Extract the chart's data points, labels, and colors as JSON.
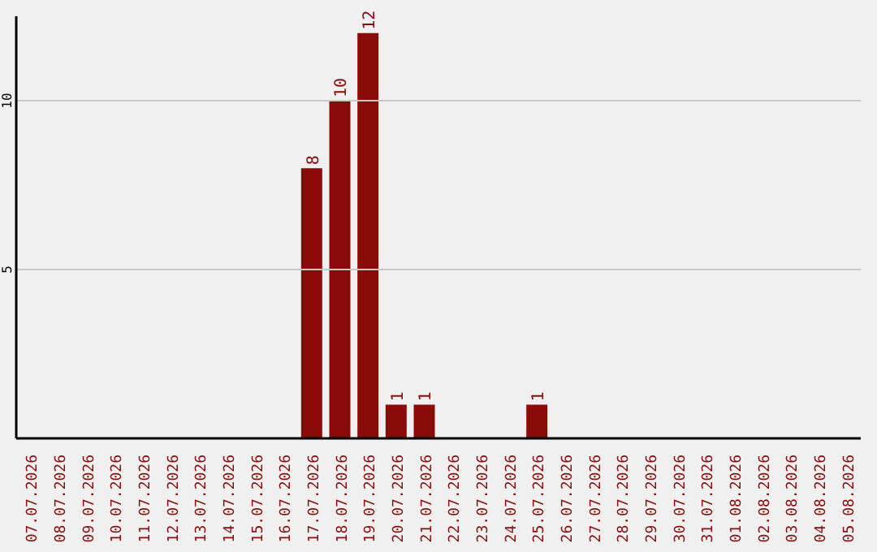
{
  "chart_data": {
    "type": "bar",
    "categories": [
      "07.07.2026",
      "08.07.2026",
      "09.07.2026",
      "10.07.2026",
      "11.07.2026",
      "12.07.2026",
      "13.07.2026",
      "14.07.2026",
      "15.07.2026",
      "16.07.2026",
      "17.07.2026",
      "18.07.2026",
      "19.07.2026",
      "20.07.2026",
      "21.07.2026",
      "22.07.2026",
      "23.07.2026",
      "24.07.2026",
      "25.07.2026",
      "26.07.2026",
      "27.07.2026",
      "28.07.2026",
      "29.07.2026",
      "30.07.2026",
      "31.07.2026",
      "01.08.2026",
      "02.08.2026",
      "03.08.2026",
      "04.08.2026",
      "05.08.2026"
    ],
    "values": [
      0,
      0,
      0,
      0,
      0,
      0,
      0,
      0,
      0,
      0,
      8,
      10,
      12,
      1,
      1,
      0,
      0,
      0,
      1,
      0,
      0,
      0,
      0,
      0,
      0,
      0,
      0,
      0,
      0,
      0
    ],
    "value_labels": [
      null,
      null,
      null,
      null,
      null,
      null,
      null,
      null,
      null,
      null,
      "8",
      "10",
      "12",
      "1",
      "1",
      null,
      null,
      null,
      "1",
      null,
      null,
      null,
      null,
      null,
      null,
      null,
      null,
      null,
      null,
      null
    ],
    "color": "#8b0b0b",
    "ylim": [
      0,
      12.5
    ],
    "yticks": [
      5,
      10
    ],
    "grid": "y"
  }
}
